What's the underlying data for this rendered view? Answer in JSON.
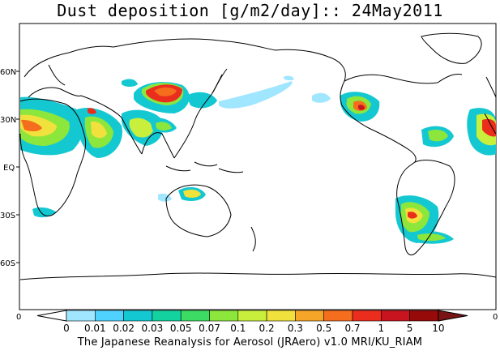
{
  "title": "Dust deposition [g/m2/day]:: 24May2011",
  "map": {
    "lat_labels": [
      "60N",
      "30N",
      "EQ",
      "30S",
      "60S"
    ],
    "left_edge_label": "0",
    "right_edge_label": "0"
  },
  "legend": {
    "levels": [
      "0",
      "0.01",
      "0.02",
      "0.03",
      "0.05",
      "0.07",
      "0.1",
      "0.2",
      "0.3",
      "0.5",
      "0.7",
      "1",
      "5",
      "10"
    ],
    "colors": [
      "#ffffff",
      "#a0e6ff",
      "#50d2ff",
      "#14c8d2",
      "#14d2a0",
      "#3cdc64",
      "#8ce63c",
      "#c8ef3c",
      "#f0e13c",
      "#f5a528",
      "#f56e1e",
      "#eb2d1e",
      "#c8141e",
      "#960a0a",
      "#781414"
    ]
  },
  "footer": "The Japanese Reanalysis for Aerosol (JRAero) v1.0 MRI/KU_RIAM"
}
